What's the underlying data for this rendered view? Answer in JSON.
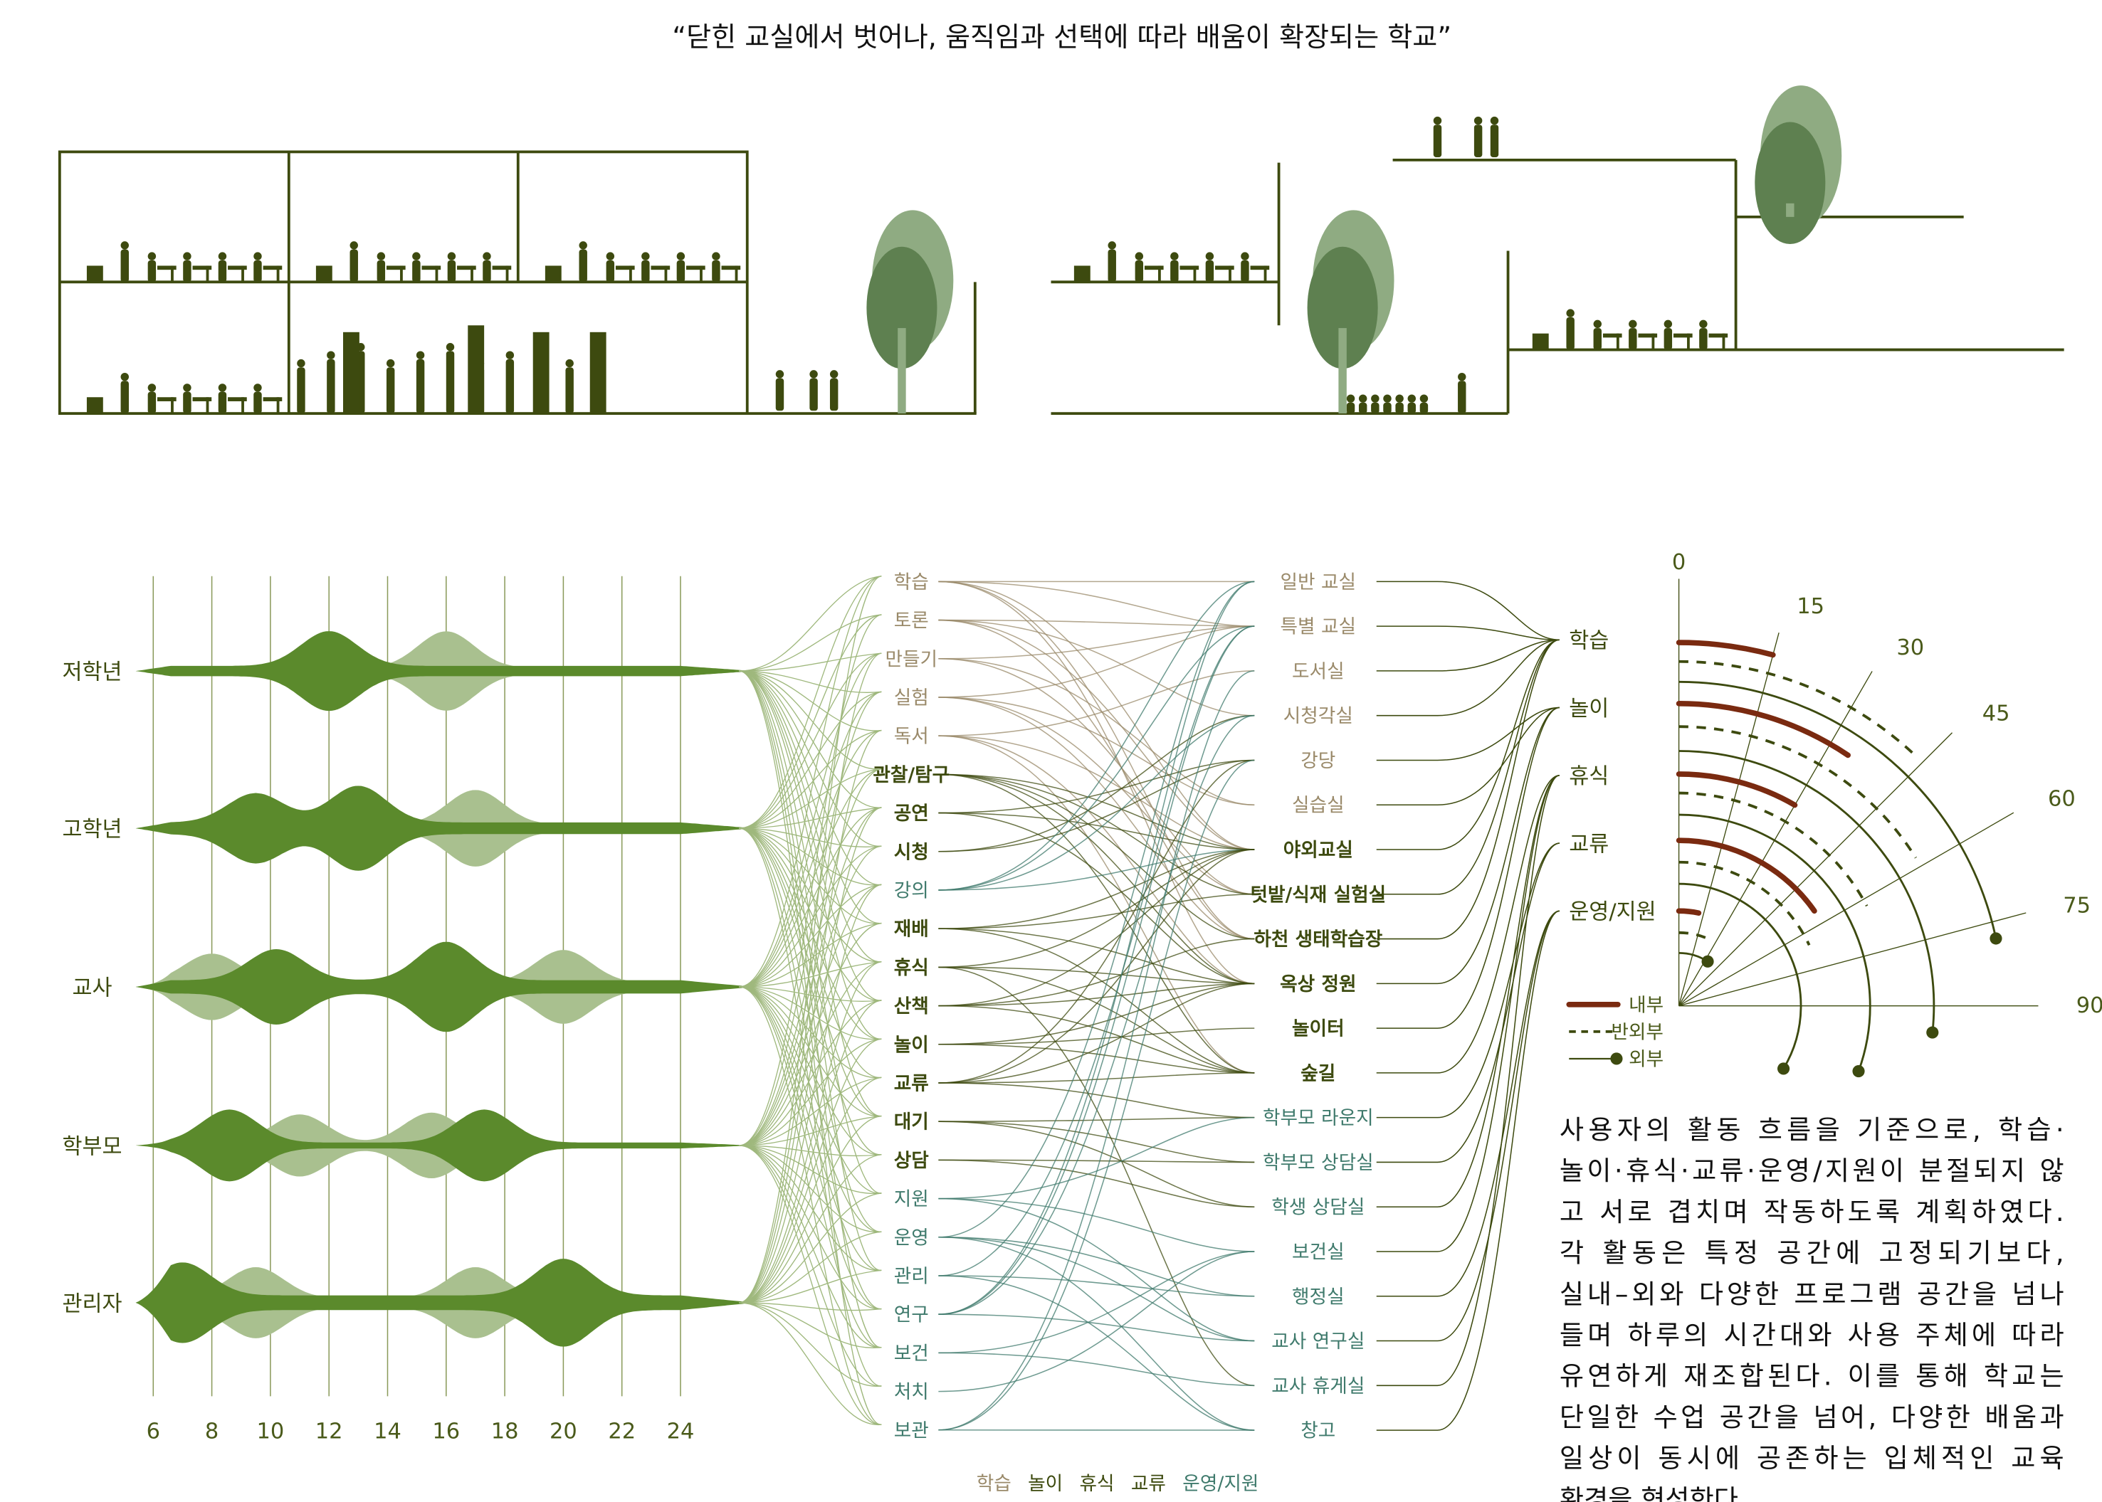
{
  "title": "“닫힌 교실에서 벗어나, 움직임과 선택에 따라 배움이 확장되는 학교”",
  "colors": {
    "dark_green": "#5b8a2c",
    "light_green": "#a9c08f",
    "olive_text": "#3d4a0f",
    "tan": "#9a8a6a",
    "teal": "#3f7a6c",
    "red": "#7a2a10",
    "silhouette": "#3d4a0f",
    "tree_dark": "#5e8050",
    "tree_light": "#8fab82"
  },
  "timeline": {
    "hour_ticks": [
      "6",
      "8",
      "10",
      "12",
      "14",
      "16",
      "18",
      "20",
      "22",
      "24"
    ],
    "rows": [
      {
        "label": "저학년",
        "base": 0.14,
        "dark_peaks": [
          [
            12,
            0.95
          ]
        ],
        "light_peaks": [
          [
            16,
            1.0
          ]
        ]
      },
      {
        "label": "고학년",
        "base": 0.16,
        "dark_peaks": [
          [
            9.5,
            0.8
          ],
          [
            13,
            1.0
          ]
        ],
        "light_peaks": [
          [
            17,
            0.95
          ]
        ]
      },
      {
        "label": "교사",
        "base": 0.18,
        "dark_peaks": [
          [
            10.2,
            0.85
          ],
          [
            16,
            1.05
          ]
        ],
        "light_peaks": [
          [
            8,
            0.8
          ],
          [
            20,
            0.9
          ]
        ]
      },
      {
        "label": "학부모",
        "base": 0.08,
        "dark_peaks": [
          [
            8.6,
            0.9
          ],
          [
            17.3,
            0.9
          ]
        ],
        "light_peaks": [
          [
            11,
            0.8
          ],
          [
            15.5,
            0.85
          ]
        ]
      },
      {
        "label": "관리자",
        "base": 0.2,
        "dark_peaks": [
          [
            7,
            0.9
          ],
          [
            20,
            1.0
          ]
        ],
        "light_peaks": [
          [
            9.5,
            0.85
          ],
          [
            17,
            0.85
          ]
        ]
      }
    ]
  },
  "activities": [
    {
      "label": "학습",
      "group": "learn"
    },
    {
      "label": "토론",
      "group": "learn"
    },
    {
      "label": "만들기",
      "group": "learn"
    },
    {
      "label": "실험",
      "group": "learn"
    },
    {
      "label": "독서",
      "group": "learn"
    },
    {
      "label": "관찰/탐구",
      "group": "play"
    },
    {
      "label": "공연",
      "group": "play"
    },
    {
      "label": "시청",
      "group": "play"
    },
    {
      "label": "강의",
      "group": "ops"
    },
    {
      "label": "재배",
      "group": "play"
    },
    {
      "label": "휴식",
      "group": "play"
    },
    {
      "label": "산책",
      "group": "play"
    },
    {
      "label": "놀이",
      "group": "play"
    },
    {
      "label": "교류",
      "group": "play"
    },
    {
      "label": "대기",
      "group": "play"
    },
    {
      "label": "상담",
      "group": "play"
    },
    {
      "label": "지원",
      "group": "ops"
    },
    {
      "label": "운영",
      "group": "ops"
    },
    {
      "label": "관리",
      "group": "ops"
    },
    {
      "label": "연구",
      "group": "ops"
    },
    {
      "label": "보건",
      "group": "ops"
    },
    {
      "label": "처치",
      "group": "ops"
    },
    {
      "label": "보관",
      "group": "ops"
    }
  ],
  "spaces": [
    {
      "label": "일반 교실",
      "group": "learn",
      "category": 0
    },
    {
      "label": "특별 교실",
      "group": "learn",
      "category": 0
    },
    {
      "label": "도서실",
      "group": "learn",
      "category": 0
    },
    {
      "label": "시청각실",
      "group": "learn",
      "category": 0
    },
    {
      "label": "강당",
      "group": "learn",
      "category": 1
    },
    {
      "label": "실습실",
      "group": "learn",
      "category": 1
    },
    {
      "label": "야외교실",
      "group": "play",
      "category": 0
    },
    {
      "label": "텃밭/식재 실험실",
      "group": "play",
      "category": 0
    },
    {
      "label": "하천 생태학습장",
      "group": "play",
      "category": 0
    },
    {
      "label": "옥상 정원",
      "group": "play",
      "category": 1
    },
    {
      "label": "놀이터",
      "group": "play",
      "category": 1
    },
    {
      "label": "숲길",
      "group": "play",
      "category": 2
    },
    {
      "label": "학부모 라운지",
      "group": "ops",
      "category": 3
    },
    {
      "label": "학부모 상담실",
      "group": "ops",
      "category": 3
    },
    {
      "label": "학생 상담실",
      "group": "ops",
      "category": 2
    },
    {
      "label": "보건실",
      "group": "ops",
      "category": 2
    },
    {
      "label": "행정실",
      "group": "ops",
      "category": 4
    },
    {
      "label": "교사 연구실",
      "group": "ops",
      "category": 4
    },
    {
      "label": "교사 휴게실",
      "group": "ops",
      "category": 2
    },
    {
      "label": "창고",
      "group": "ops",
      "category": 4
    }
  ],
  "activity_space_links": [
    [
      0,
      [
        0,
        1,
        6,
        8,
        9
      ]
    ],
    [
      1,
      [
        1,
        3,
        6,
        8
      ]
    ],
    [
      2,
      [
        1,
        5,
        7
      ]
    ],
    [
      3,
      [
        1,
        5,
        7,
        8
      ]
    ],
    [
      4,
      [
        2,
        6,
        9,
        11
      ]
    ],
    [
      5,
      [
        7,
        8,
        9,
        11,
        6
      ]
    ],
    [
      6,
      [
        4,
        6,
        9
      ]
    ],
    [
      7,
      [
        3,
        4
      ]
    ],
    [
      8,
      [
        0,
        1,
        3,
        6
      ]
    ],
    [
      9,
      [
        7,
        9,
        6,
        11
      ]
    ],
    [
      10,
      [
        9,
        11,
        18,
        6
      ]
    ],
    [
      11,
      [
        8,
        9,
        11,
        6
      ]
    ],
    [
      12,
      [
        10,
        11,
        9
      ]
    ],
    [
      13,
      [
        12,
        11,
        6,
        9,
        4
      ]
    ],
    [
      14,
      [
        12,
        13,
        14
      ]
    ],
    [
      15,
      [
        13,
        14
      ]
    ],
    [
      16,
      [
        15,
        17,
        12
      ]
    ],
    [
      17,
      [
        16,
        17,
        19,
        0
      ]
    ],
    [
      18,
      [
        16,
        19,
        1
      ]
    ],
    [
      19,
      [
        17,
        1,
        0,
        3
      ]
    ],
    [
      20,
      [
        15,
        18
      ]
    ],
    [
      21,
      [
        15
      ]
    ],
    [
      22,
      [
        19,
        2,
        4
      ]
    ]
  ],
  "categories": [
    "학습",
    "놀이",
    "휴식",
    "교류",
    "운영/지원"
  ],
  "bottom_legend": [
    {
      "label": "학습",
      "group": "learn"
    },
    {
      "label": "놀이",
      "group": "play"
    },
    {
      "label": "휴식",
      "group": "play"
    },
    {
      "label": "교류",
      "group": "play"
    },
    {
      "label": "운영/지원",
      "group": "ops"
    }
  ],
  "radial": {
    "angle_ticks": [
      "0",
      "15",
      "30",
      "45",
      "60",
      "75",
      "90"
    ],
    "series": [
      {
        "category": "학습",
        "inner": 15,
        "semi": 44,
        "outer": 78
      },
      {
        "category": "놀이",
        "inner": 34,
        "semi": 58,
        "outer": 96
      },
      {
        "category": "휴식",
        "inner": 30,
        "semi": 62,
        "outer": 110
      },
      {
        "category": "교류",
        "inner": 55,
        "semi": 65,
        "outer": 121
      },
      {
        "category": "운영/지원",
        "inner": 12,
        "semi": 24,
        "outer": 33
      }
    ],
    "legend": {
      "inner": "내부",
      "semi": "반외부",
      "outer": "외부"
    }
  },
  "paragraph": [
    "사용자의 활동 흐름을 기준으로, 학습·",
    "놀이·휴식·교류·운영/지원이 분절되지 않",
    "고 서로 겹치며 작동하도록 계획하였다.",
    "각 활동은 특정 공간에 고정되기보다,",
    "실내–외와 다양한 프로그램 공간을 넘나",
    "들며 하루의 시간대와 사용 주체에 따라",
    "유연하게 재조합된다. 이를 통해 학교는",
    "단일한 수업 공간을 넘어, 다양한 배움과",
    "일상이 동시에 공존하는 입체적인 교육",
    "환경을 형성한다."
  ]
}
